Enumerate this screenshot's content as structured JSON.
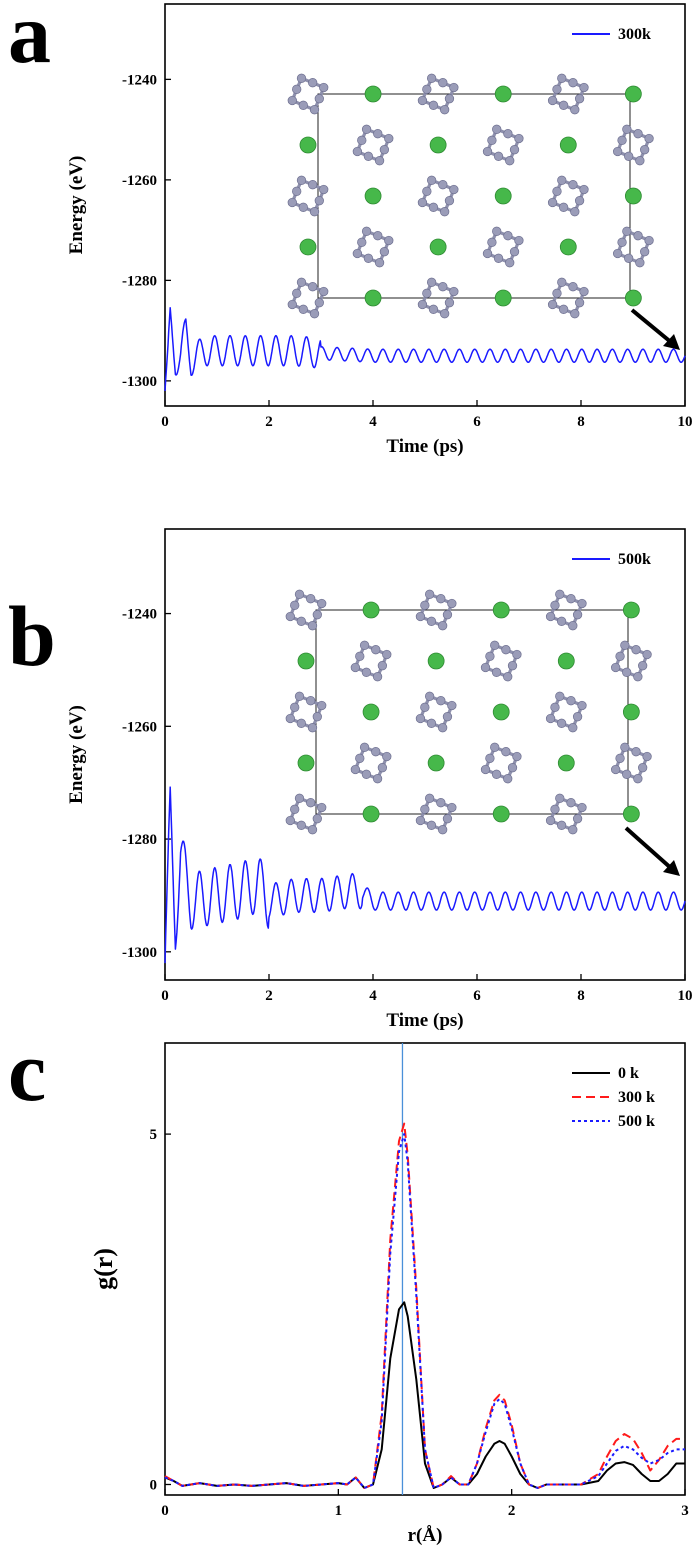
{
  "chart_data": [
    {
      "panel": "a",
      "type": "line",
      "xlabel": "Time (ps)",
      "ylabel": "Energy (eV)",
      "xlim": [
        0,
        10
      ],
      "ylim": [
        -1305,
        -1225
      ],
      "xticks": [
        0,
        2,
        4,
        6,
        8,
        10
      ],
      "yticks": [
        -1240,
        -1260,
        -1280,
        -1300
      ],
      "grid": false,
      "legend_position": "top-right",
      "series": [
        {
          "name": "300k",
          "color": "#1a1aff",
          "x": [
            0,
            0.05,
            0.1,
            0.2,
            0.3,
            0.4,
            0.5,
            0.75,
            1.0,
            1.5,
            2.0,
            2.5,
            3.0,
            4.0,
            5.0,
            6.0,
            7.0,
            8.0,
            9.0,
            10.0
          ],
          "y": [
            -1302,
            -1297,
            -1288,
            -1296,
            -1295,
            -1290,
            -1296,
            -1294,
            -1294,
            -1294,
            -1294,
            -1294,
            -1294.5,
            -1295,
            -1295,
            -1295,
            -1295,
            -1295,
            -1295,
            -1295
          ]
        }
      ],
      "inset": "atomic structure snapshot"
    },
    {
      "panel": "b",
      "type": "line",
      "xlabel": "Time (ps)",
      "ylabel": "Energy (eV)",
      "xlim": [
        0,
        10
      ],
      "ylim": [
        -1305,
        -1225
      ],
      "xticks": [
        0,
        2,
        4,
        6,
        8,
        10
      ],
      "yticks": [
        -1240,
        -1260,
        -1280,
        -1300
      ],
      "grid": false,
      "legend_position": "top-right",
      "series": [
        {
          "name": "500k",
          "color": "#1a1aff",
          "x": [
            0,
            0.05,
            0.1,
            0.2,
            0.3,
            0.5,
            1.0,
            1.5,
            1.8,
            2.0,
            2.5,
            3.0,
            3.7,
            4.0,
            5.0,
            6.0,
            7.0,
            8.0,
            9.0,
            10.0
          ],
          "y": [
            -1302,
            -1290,
            -1275,
            -1295,
            -1283,
            -1291,
            -1290,
            -1289,
            -1288,
            -1291,
            -1290,
            -1290,
            -1289,
            -1291,
            -1291,
            -1291,
            -1291,
            -1291,
            -1291,
            -1291
          ]
        }
      ],
      "inset": "atomic structure snapshot"
    },
    {
      "panel": "c",
      "type": "line",
      "xlabel": "r(Å)",
      "ylabel": "g(r)",
      "xlim": [
        0,
        3
      ],
      "ylim": [
        -0.15,
        6.3
      ],
      "xticks": [
        0,
        1,
        2,
        3
      ],
      "yticks": [
        0,
        5
      ],
      "grid": false,
      "legend_position": "top-right",
      "reference_line_x": 1.37,
      "series": [
        {
          "name": "0 k",
          "color": "#000000",
          "dash": "solid",
          "x": [
            0,
            0.05,
            0.1,
            0.2,
            0.3,
            0.4,
            0.5,
            0.6,
            0.7,
            0.8,
            0.9,
            1.0,
            1.05,
            1.1,
            1.15,
            1.2,
            1.25,
            1.3,
            1.35,
            1.38,
            1.4,
            1.45,
            1.5,
            1.55,
            1.6,
            1.65,
            1.7,
            1.75,
            1.8,
            1.85,
            1.9,
            1.93,
            1.96,
            2.0,
            2.05,
            2.1,
            2.15,
            2.2,
            2.3,
            2.4,
            2.5,
            2.55,
            2.6,
            2.65,
            2.7,
            2.75,
            2.8,
            2.85,
            2.9,
            2.95,
            3.0
          ],
          "y": [
            0.1,
            0.05,
            -0.02,
            0.02,
            -0.02,
            0.0,
            -0.02,
            0.0,
            0.02,
            -0.02,
            0.0,
            0.02,
            0.0,
            0.1,
            -0.05,
            0.0,
            0.5,
            1.8,
            2.5,
            2.6,
            2.4,
            1.5,
            0.3,
            -0.05,
            0.0,
            0.1,
            0.0,
            0.0,
            0.15,
            0.4,
            0.58,
            0.62,
            0.58,
            0.4,
            0.15,
            0.0,
            -0.05,
            0.0,
            0.0,
            0.0,
            0.05,
            0.2,
            0.3,
            0.32,
            0.28,
            0.15,
            0.05,
            0.05,
            0.15,
            0.3,
            0.3
          ]
        },
        {
          "name": "300 k",
          "color": "#ff1a1a",
          "dash": "dash",
          "x": [
            0,
            0.05,
            0.1,
            0.2,
            0.3,
            0.4,
            0.5,
            0.6,
            0.7,
            0.8,
            0.9,
            1.0,
            1.05,
            1.1,
            1.15,
            1.2,
            1.25,
            1.3,
            1.35,
            1.38,
            1.4,
            1.45,
            1.5,
            1.55,
            1.6,
            1.65,
            1.7,
            1.75,
            1.8,
            1.85,
            1.9,
            1.93,
            1.96,
            2.0,
            2.05,
            2.1,
            2.15,
            2.2,
            2.3,
            2.4,
            2.5,
            2.55,
            2.6,
            2.65,
            2.7,
            2.75,
            2.8,
            2.85,
            2.9,
            2.95,
            3.0
          ],
          "y": [
            0.12,
            0.05,
            -0.02,
            0.02,
            -0.02,
            0.0,
            -0.02,
            0.0,
            0.02,
            -0.02,
            0.0,
            0.02,
            0.0,
            0.1,
            -0.05,
            0.0,
            1.0,
            3.5,
            4.9,
            5.15,
            4.7,
            2.8,
            0.5,
            -0.05,
            0.0,
            0.12,
            0.0,
            0.0,
            0.3,
            0.8,
            1.2,
            1.28,
            1.2,
            0.85,
            0.3,
            0.0,
            -0.05,
            0.0,
            0.0,
            0.0,
            0.15,
            0.4,
            0.62,
            0.72,
            0.65,
            0.45,
            0.2,
            0.35,
            0.55,
            0.65,
            0.65
          ]
        },
        {
          "name": "500 k",
          "color": "#1a1aff",
          "dash": "dot",
          "x": [
            0,
            0.05,
            0.1,
            0.2,
            0.3,
            0.4,
            0.5,
            0.6,
            0.7,
            0.8,
            0.9,
            1.0,
            1.05,
            1.1,
            1.15,
            1.2,
            1.25,
            1.3,
            1.35,
            1.38,
            1.4,
            1.45,
            1.5,
            1.55,
            1.6,
            1.65,
            1.7,
            1.75,
            1.8,
            1.85,
            1.9,
            1.93,
            1.96,
            2.0,
            2.05,
            2.1,
            2.15,
            2.2,
            2.3,
            2.4,
            2.5,
            2.55,
            2.6,
            2.65,
            2.7,
            2.75,
            2.8,
            2.85,
            2.9,
            2.95,
            3.0
          ],
          "y": [
            0.1,
            0.05,
            -0.02,
            0.02,
            -0.02,
            0.0,
            -0.02,
            0.0,
            0.02,
            -0.02,
            0.0,
            0.02,
            0.0,
            0.1,
            -0.05,
            0.0,
            0.9,
            3.3,
            4.75,
            5.0,
            4.6,
            2.7,
            0.5,
            -0.05,
            0.0,
            0.1,
            0.0,
            0.0,
            0.3,
            0.75,
            1.15,
            1.22,
            1.15,
            0.8,
            0.3,
            0.0,
            -0.05,
            0.0,
            0.0,
            0.0,
            0.12,
            0.3,
            0.48,
            0.55,
            0.5,
            0.38,
            0.3,
            0.35,
            0.45,
            0.5,
            0.5
          ]
        }
      ]
    }
  ],
  "panel_letters": [
    "a",
    "b",
    "c"
  ],
  "colors": {
    "blue": "#1a1aff",
    "red": "#ff1a1a",
    "black": "#000000",
    "green_atom": "#46b84a",
    "grey_atom": "#9a9cb8",
    "reference_line": "#4a90d9"
  },
  "icons": [
    "arrow-icon"
  ]
}
